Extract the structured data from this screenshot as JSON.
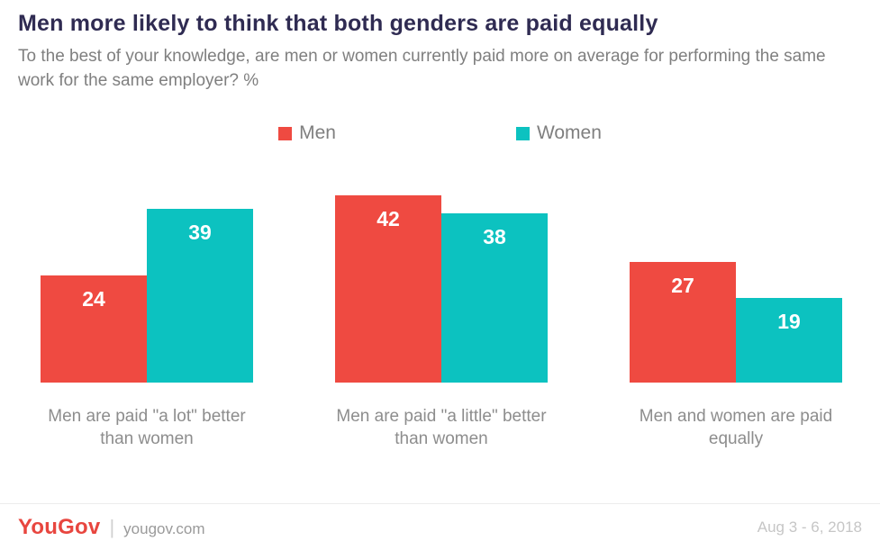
{
  "header": {
    "title": "Men more likely to think that both genders are paid equally",
    "subtitle": "To the best of your knowledge, are men or women currently paid more on average for performing the same work for the same employer? %"
  },
  "chart_data": {
    "type": "bar",
    "title": "Men more likely to think that both genders are paid equally",
    "categories": [
      "Men are paid \"a lot\" better than women",
      "Men are paid \"a little\" better than women",
      "Men and women are paid equally"
    ],
    "series": [
      {
        "name": "Men",
        "color": "#ef4a41",
        "values": [
          24,
          42,
          27
        ]
      },
      {
        "name": "Women",
        "color": "#0cc2c0",
        "values": [
          39,
          38,
          19
        ]
      }
    ],
    "ylim": [
      0,
      42
    ],
    "value_labels": "inside-top",
    "grid": false,
    "legend_position": "top-center"
  },
  "footer": {
    "logo": "YouGov",
    "site": "yougov.com",
    "date_range": "Aug 3 - 6, 2018"
  }
}
